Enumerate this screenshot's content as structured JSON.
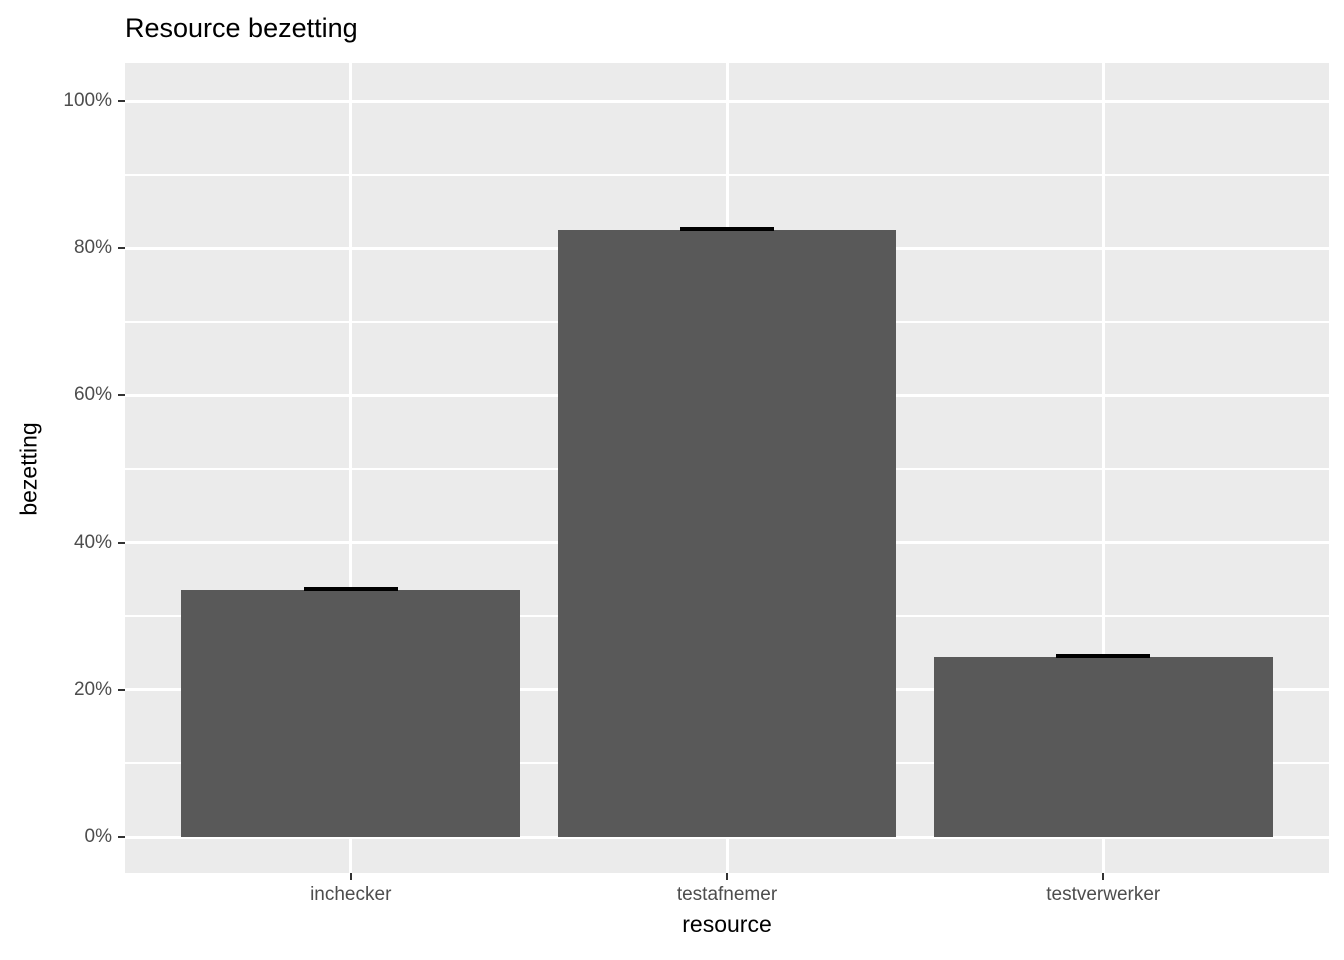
{
  "chart_data": {
    "type": "bar",
    "title": "Resource bezetting",
    "xlabel": "resource",
    "ylabel": "bezetting",
    "categories": [
      "inchecker",
      "testafnemer",
      "testverwerker"
    ],
    "values": [
      33.5,
      82.5,
      24.5
    ],
    "errorbars": {
      "ymin": [
        33.5,
        82.5,
        24.5
      ],
      "ymax": [
        33.5,
        82.5,
        24.5
      ],
      "width_units": 0.25
    },
    "ylim": [
      0,
      100
    ],
    "yticks": [
      {
        "value": 0,
        "label": "0%"
      },
      {
        "value": 20,
        "label": "20%"
      },
      {
        "value": 40,
        "label": "40%"
      },
      {
        "value": 60,
        "label": "60%"
      },
      {
        "value": 80,
        "label": "80%"
      },
      {
        "value": 100,
        "label": "100%"
      }
    ],
    "minor_gridlines": [
      10,
      30,
      50,
      70,
      90
    ],
    "grid": "on",
    "legend_position": "none",
    "bar_width_units": 0.9,
    "colors": {
      "bar_fill": "#595959",
      "errorbar": "#000000",
      "panel_background": "#ebebeb",
      "grid_line": "#ffffff",
      "tick_mark": "#333333",
      "tick_label": "#4d4d4d",
      "axis_title": "#000000",
      "figure_background": "#ffffff"
    }
  }
}
